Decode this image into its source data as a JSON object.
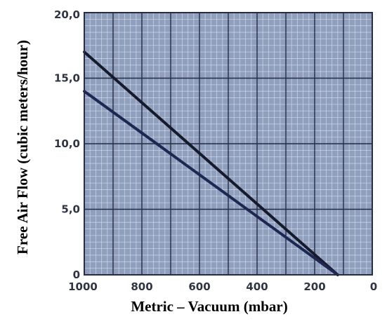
{
  "chart_data": {
    "type": "line",
    "xlabel": "Metric – Vacuum (mbar)",
    "ylabel": "Free Air Flow (cubic meters/hour)",
    "xlim": [
      1000,
      0
    ],
    "ylim": [
      0,
      20
    ],
    "x_reversed": true,
    "x_ticks": [
      "1000",
      "800",
      "600",
      "400",
      "200",
      "0"
    ],
    "y_ticks": [
      "0",
      "5,0",
      "10,0",
      "15,0",
      "20,0"
    ],
    "grid": true,
    "series": [
      {
        "x": [
          1000,
          120
        ],
        "y": [
          17,
          0
        ]
      },
      {
        "x": [
          1000,
          120
        ],
        "y": [
          14,
          0
        ]
      }
    ]
  },
  "colors": {
    "plot_background": "#8f9fbd",
    "major_grid": "#262c43",
    "minor_grid": "#d3dbeb",
    "series": [
      "#151a2c",
      "#1e2752"
    ]
  }
}
